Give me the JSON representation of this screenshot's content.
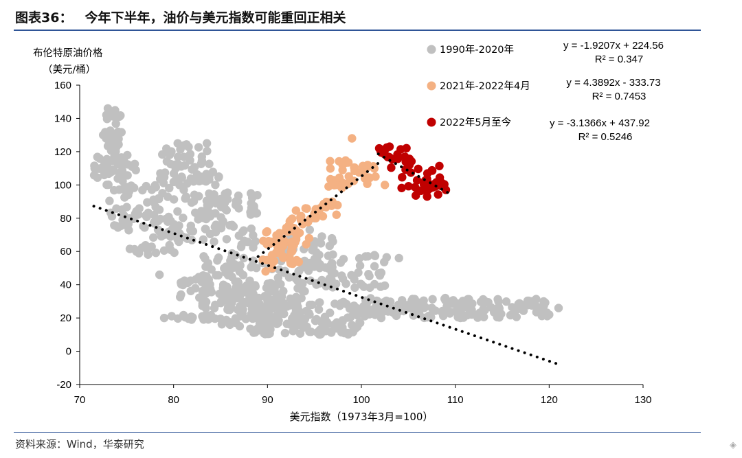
{
  "header": {
    "figure_number": "图表36：",
    "title": "今年下半年，油价与美元指数可能重回正相关"
  },
  "footer": {
    "source": "资料来源：Wind，华泰研究"
  },
  "chart_data": {
    "type": "scatter",
    "title": "今年下半年，油价与美元指数可能重回正相关",
    "ylabel_line1": "布伦特原油价格",
    "ylabel_line2": "（美元/桶）",
    "xlabel": "美元指数（1973年3月=100）",
    "xlim": [
      70,
      130
    ],
    "ylim": [
      -20,
      160
    ],
    "x_ticks": [
      70,
      80,
      90,
      100,
      110,
      120,
      130
    ],
    "y_ticks": [
      -20,
      0,
      20,
      40,
      60,
      80,
      100,
      120,
      140,
      160
    ],
    "x_tick_labels": [
      "70",
      "80",
      "90",
      "100",
      "110",
      "120",
      "130"
    ],
    "y_tick_labels": [
      "-20",
      "0",
      "20",
      "40",
      "60",
      "80",
      "100",
      "120",
      "140",
      "160"
    ],
    "grid": false,
    "legend_position": "top-right",
    "series": [
      {
        "name": "1990年-2020年",
        "color": "#c0c0c0",
        "trendline": {
          "equation": "y = -1.9207x + 224.56",
          "r2": "R² = 0.347",
          "slope": -1.9207,
          "intercept": 224.56,
          "x_range": [
            71.5,
            121
          ]
        },
        "clusters": [
          {
            "x": [
              72.5,
              74.5
            ],
            "y": [
              120,
              145
            ],
            "n": 35
          },
          {
            "x": [
              71.5,
              76
            ],
            "y": [
              100,
              118
            ],
            "n": 45
          },
          {
            "x": [
              73,
              80
            ],
            "y": [
              72,
              100
            ],
            "n": 55
          },
          {
            "x": [
              75,
              82
            ],
            "y": [
              58,
              80
            ],
            "n": 45
          },
          {
            "x": [
              78.5,
              84
            ],
            "y": [
              100,
              126
            ],
            "n": 45
          },
          {
            "x": [
              80,
              86
            ],
            "y": [
              80,
              110
            ],
            "n": 45
          },
          {
            "x": [
              82,
              89
            ],
            "y": [
              62,
              95
            ],
            "n": 60
          },
          {
            "x": [
              83,
              89
            ],
            "y": [
              25,
              60
            ],
            "n": 80
          },
          {
            "x": [
              80,
              84
            ],
            "y": [
              32,
              46
            ],
            "n": 20
          },
          {
            "x": [
              85,
              94
            ],
            "y": [
              15,
              42
            ],
            "n": 110
          },
          {
            "x": [
              88,
              100
            ],
            "y": [
              10,
              30
            ],
            "n": 140
          },
          {
            "x": [
              79,
              85
            ],
            "y": [
              19,
              22
            ],
            "n": 25
          },
          {
            "x": [
              90,
              97
            ],
            "y": [
              40,
              72
            ],
            "n": 60
          },
          {
            "x": [
              94,
              103
            ],
            "y": [
              38,
              58
            ],
            "n": 55
          },
          {
            "x": [
              100,
              120
            ],
            "y": [
              20,
              32
            ],
            "n": 160
          }
        ],
        "points": [
          {
            "x": 73.0,
            "y": 146
          },
          {
            "x": 72.5,
            "y": 130
          },
          {
            "x": 78.5,
            "y": 46
          },
          {
            "x": 79,
            "y": 20
          },
          {
            "x": 89.5,
            "y": 53
          },
          {
            "x": 94.5,
            "y": 73
          },
          {
            "x": 95,
            "y": 80
          },
          {
            "x": 104,
            "y": 56
          },
          {
            "x": 121,
            "y": 26
          },
          {
            "x": 120,
            "y": 22
          }
        ]
      },
      {
        "name": "2021年-2022年4月",
        "color": "#f4b183",
        "trendline": {
          "equation": "y = 4.3892x - 333.73",
          "r2": "R² = 0.7453",
          "slope": 4.3892,
          "intercept": -333.73,
          "x_range": [
            89,
            102
          ]
        },
        "clusters": [
          {
            "x": [
              89.5,
              93.5
            ],
            "y": [
              52,
              75
            ],
            "n": 45
          },
          {
            "x": [
              92,
              96
            ],
            "y": [
              64,
              86
            ],
            "n": 25
          },
          {
            "x": [
              95,
              97.5
            ],
            "y": [
              80,
              90
            ],
            "n": 15
          },
          {
            "x": [
              96.5,
              99
            ],
            "y": [
              98,
              115
            ],
            "n": 20
          },
          {
            "x": [
              99,
              101.5
            ],
            "y": [
              100,
              112
            ],
            "n": 15
          }
        ],
        "points": [
          {
            "x": 99,
            "y": 128
          },
          {
            "x": 89.8,
            "y": 48
          },
          {
            "x": 90.5,
            "y": 50
          },
          {
            "x": 98,
            "y": 112
          },
          {
            "x": 101.5,
            "y": 105
          },
          {
            "x": 102.5,
            "y": 100
          }
        ]
      },
      {
        "name": "2022年5月至今",
        "color": "#c00000",
        "trendline": {
          "equation": "y = -3.1366x + 437.92",
          "r2": "R² = 0.5246",
          "slope": -3.1366,
          "intercept": 437.92,
          "x_range": [
            101.8,
            109.2
          ]
        },
        "clusters": [
          {
            "x": [
              102,
              105.5
            ],
            "y": [
              110,
              123
            ],
            "n": 20
          },
          {
            "x": [
              104,
              108.5
            ],
            "y": [
              98,
              112
            ],
            "n": 20
          },
          {
            "x": [
              105.5,
              109
            ],
            "y": [
              93,
              103
            ],
            "n": 15
          }
        ],
        "points": [
          {
            "x": 101.9,
            "y": 122
          },
          {
            "x": 109,
            "y": 97
          },
          {
            "x": 107,
            "y": 93
          },
          {
            "x": 103,
            "y": 123
          }
        ]
      }
    ]
  }
}
